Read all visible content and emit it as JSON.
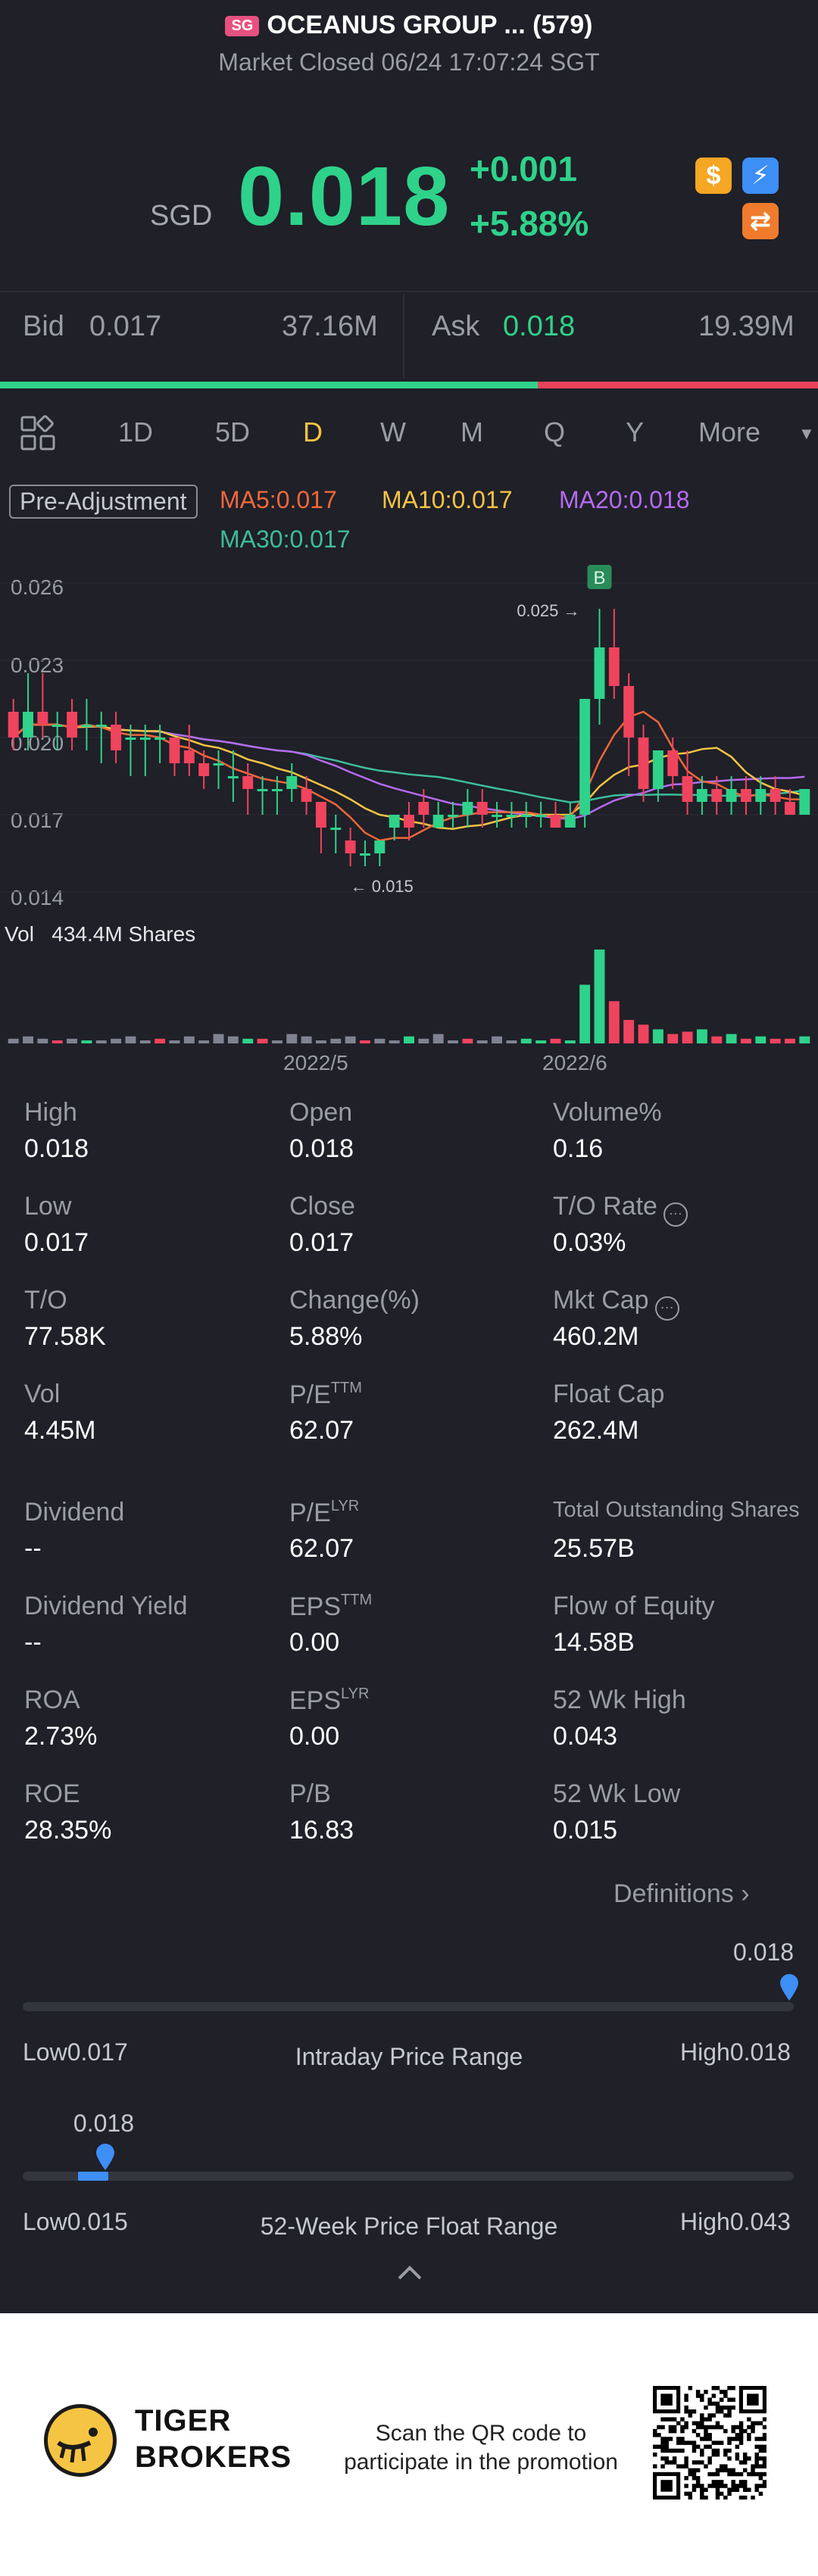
{
  "header": {
    "badge": "SG",
    "title": "OCEANUS GROUP ... (579)",
    "status": "Market Closed 06/24 17:07:24 SGT"
  },
  "quote": {
    "currency": "SGD",
    "price": "0.018",
    "change": "+0.001",
    "change_pct": "+5.88%"
  },
  "badges": [
    {
      "name": "dollar-badge-icon",
      "glyph": "$",
      "color": "#f5a623"
    },
    {
      "name": "lightning-badge-icon",
      "glyph": "⚡",
      "color": "#3d8ef5"
    },
    {
      "name": "exchange-badge-icon",
      "glyph": "⇄",
      "color": "#f07b2c"
    }
  ],
  "bidask": {
    "bid_label": "Bid",
    "bid_price": "0.017",
    "bid_vol": "37.16M",
    "ask_label": "Ask",
    "ask_price": "0.018",
    "ask_vol": "19.39M"
  },
  "tabs": [
    "1D",
    "5D",
    "D",
    "W",
    "M",
    "Q",
    "Y",
    "More"
  ],
  "active_tab": "D",
  "indicators": {
    "pre_adjustment": "Pre-Adjustment",
    "ma5": "MA5:0.017",
    "ma10": "MA10:0.017",
    "ma20": "MA20:0.018",
    "ma30": "MA30:0.017",
    "colors": {
      "ma5": "#f0673a",
      "ma10": "#f6c443",
      "ma20": "#b66af0",
      "ma30": "#3dbd9c",
      "up": "#2fd28a",
      "down": "#f0435e"
    }
  },
  "chart_data": {
    "type": "candlestick",
    "y_ticks": [
      "0.026",
      "0.023",
      "0.020",
      "0.017",
      "0.014"
    ],
    "ylim": [
      0.014,
      0.026
    ],
    "x_ticks": [
      "2022/5",
      "2022/6"
    ],
    "annotations": {
      "high_marker": "0.025",
      "low_marker": "0.015",
      "signal": "B"
    },
    "volume_label": "Vol",
    "volume_value": "434.4M Shares",
    "candles": [
      {
        "o": 0.021,
        "h": 0.0215,
        "l": 0.0195,
        "c": 0.02
      },
      {
        "o": 0.02,
        "h": 0.0225,
        "l": 0.0195,
        "c": 0.021
      },
      {
        "o": 0.021,
        "h": 0.0225,
        "l": 0.02,
        "c": 0.0205
      },
      {
        "o": 0.0205,
        "h": 0.021,
        "l": 0.0195,
        "c": 0.0205
      },
      {
        "o": 0.021,
        "h": 0.0215,
        "l": 0.0195,
        "c": 0.02
      },
      {
        "o": 0.0205,
        "h": 0.0215,
        "l": 0.0195,
        "c": 0.0205
      },
      {
        "o": 0.0205,
        "h": 0.021,
        "l": 0.019,
        "c": 0.0205
      },
      {
        "o": 0.0205,
        "h": 0.021,
        "l": 0.019,
        "c": 0.0195
      },
      {
        "o": 0.02,
        "h": 0.0205,
        "l": 0.0185,
        "c": 0.02
      },
      {
        "o": 0.02,
        "h": 0.0205,
        "l": 0.0185,
        "c": 0.02
      },
      {
        "o": 0.02,
        "h": 0.0205,
        "l": 0.019,
        "c": 0.02
      },
      {
        "o": 0.02,
        "h": 0.02,
        "l": 0.0185,
        "c": 0.019
      },
      {
        "o": 0.0195,
        "h": 0.0205,
        "l": 0.0185,
        "c": 0.019
      },
      {
        "o": 0.019,
        "h": 0.0195,
        "l": 0.018,
        "c": 0.0185
      },
      {
        "o": 0.019,
        "h": 0.0195,
        "l": 0.018,
        "c": 0.019
      },
      {
        "o": 0.0185,
        "h": 0.0195,
        "l": 0.0175,
        "c": 0.0185
      },
      {
        "o": 0.0185,
        "h": 0.019,
        "l": 0.017,
        "c": 0.018
      },
      {
        "o": 0.018,
        "h": 0.0185,
        "l": 0.017,
        "c": 0.018
      },
      {
        "o": 0.018,
        "h": 0.0185,
        "l": 0.017,
        "c": 0.018
      },
      {
        "o": 0.018,
        "h": 0.019,
        "l": 0.0175,
        "c": 0.0185
      },
      {
        "o": 0.018,
        "h": 0.0185,
        "l": 0.017,
        "c": 0.0175
      },
      {
        "o": 0.0175,
        "h": 0.0175,
        "l": 0.0155,
        "c": 0.0165
      },
      {
        "o": 0.0165,
        "h": 0.017,
        "l": 0.0155,
        "c": 0.0165
      },
      {
        "o": 0.016,
        "h": 0.0165,
        "l": 0.015,
        "c": 0.0155
      },
      {
        "o": 0.0155,
        "h": 0.016,
        "l": 0.015,
        "c": 0.0155
      },
      {
        "o": 0.0155,
        "h": 0.016,
        "l": 0.015,
        "c": 0.016
      },
      {
        "o": 0.0165,
        "h": 0.017,
        "l": 0.016,
        "c": 0.017
      },
      {
        "o": 0.017,
        "h": 0.0175,
        "l": 0.016,
        "c": 0.0165
      },
      {
        "o": 0.0175,
        "h": 0.018,
        "l": 0.0165,
        "c": 0.017
      },
      {
        "o": 0.0165,
        "h": 0.0175,
        "l": 0.0165,
        "c": 0.017
      },
      {
        "o": 0.017,
        "h": 0.0175,
        "l": 0.0165,
        "c": 0.017
      },
      {
        "o": 0.017,
        "h": 0.018,
        "l": 0.0165,
        "c": 0.0175
      },
      {
        "o": 0.0175,
        "h": 0.018,
        "l": 0.0165,
        "c": 0.017
      },
      {
        "o": 0.017,
        "h": 0.0175,
        "l": 0.0165,
        "c": 0.017
      },
      {
        "o": 0.017,
        "h": 0.0175,
        "l": 0.0165,
        "c": 0.017
      },
      {
        "o": 0.017,
        "h": 0.0175,
        "l": 0.0165,
        "c": 0.017
      },
      {
        "o": 0.017,
        "h": 0.0175,
        "l": 0.0165,
        "c": 0.017
      },
      {
        "o": 0.017,
        "h": 0.0175,
        "l": 0.0165,
        "c": 0.0165
      },
      {
        "o": 0.0165,
        "h": 0.0175,
        "l": 0.0165,
        "c": 0.017
      },
      {
        "o": 0.017,
        "h": 0.0215,
        "l": 0.0165,
        "c": 0.0215
      },
      {
        "o": 0.0215,
        "h": 0.025,
        "l": 0.0205,
        "c": 0.0235
      },
      {
        "o": 0.0235,
        "h": 0.025,
        "l": 0.0215,
        "c": 0.022
      },
      {
        "o": 0.022,
        "h": 0.0225,
        "l": 0.0185,
        "c": 0.02
      },
      {
        "o": 0.02,
        "h": 0.0205,
        "l": 0.0175,
        "c": 0.018
      },
      {
        "o": 0.018,
        "h": 0.0195,
        "l": 0.0175,
        "c": 0.0195
      },
      {
        "o": 0.0195,
        "h": 0.02,
        "l": 0.018,
        "c": 0.0185
      },
      {
        "o": 0.0185,
        "h": 0.0195,
        "l": 0.017,
        "c": 0.0175
      },
      {
        "o": 0.0175,
        "h": 0.0185,
        "l": 0.017,
        "c": 0.018
      },
      {
        "o": 0.018,
        "h": 0.0185,
        "l": 0.017,
        "c": 0.0175
      },
      {
        "o": 0.0175,
        "h": 0.0185,
        "l": 0.017,
        "c": 0.018
      },
      {
        "o": 0.018,
        "h": 0.0185,
        "l": 0.017,
        "c": 0.0175
      },
      {
        "o": 0.0175,
        "h": 0.0185,
        "l": 0.017,
        "c": 0.018
      },
      {
        "o": 0.018,
        "h": 0.0185,
        "l": 0.017,
        "c": 0.0175
      },
      {
        "o": 0.0175,
        "h": 0.018,
        "l": 0.017,
        "c": 0.017
      },
      {
        "o": 0.017,
        "h": 0.018,
        "l": 0.017,
        "c": 0.018
      }
    ],
    "volumes": [
      2,
      3,
      2,
      1,
      2,
      1,
      1,
      2,
      3,
      1,
      2,
      1,
      3,
      1,
      4,
      3,
      2,
      2,
      1,
      4,
      3,
      1,
      2,
      3,
      1,
      2,
      1,
      3,
      2,
      4,
      1,
      2,
      1,
      3,
      1,
      2,
      1,
      2,
      1,
      25,
      40,
      18,
      10,
      8,
      6,
      4,
      5,
      6,
      3,
      4,
      2,
      3,
      2,
      2,
      3
    ]
  },
  "stats": [
    {
      "label": "High",
      "value": "0.018"
    },
    {
      "label": "Open",
      "value": "0.018"
    },
    {
      "label": "Volume%",
      "value": "0.16"
    },
    {
      "label": "Low",
      "value": "0.017"
    },
    {
      "label": "Close",
      "value": "0.017"
    },
    {
      "label": "T/O Rate",
      "value": "0.03%"
    },
    {
      "label": "T/O",
      "value": "77.58K"
    },
    {
      "label": "Change(%)",
      "value": "5.88%"
    },
    {
      "label": "Mkt Cap",
      "value": "460.2M"
    },
    {
      "label": "Vol",
      "value": "4.45M"
    },
    {
      "label": "P/E",
      "sup": "TTM",
      "value": "62.07"
    },
    {
      "label": "Float Cap",
      "value": "262.4M"
    },
    {
      "label": "Dividend",
      "value": "--"
    },
    {
      "label": "P/E",
      "sup": "LYR",
      "value": "62.07"
    },
    {
      "label": "Total Outstanding Shares",
      "value": "25.57B"
    },
    {
      "label": "Dividend Yield",
      "value": "--"
    },
    {
      "label": "EPS",
      "sup": "TTM",
      "value": "0.00"
    },
    {
      "label": "Flow of Equity",
      "value": "14.58B"
    },
    {
      "label": "ROA",
      "value": "2.73%"
    },
    {
      "label": "EPS",
      "sup": "LYR",
      "value": "0.00"
    },
    {
      "label": "52 Wk High",
      "value": "0.043"
    },
    {
      "label": "ROE",
      "value": "28.35%"
    },
    {
      "label": "P/B",
      "value": "16.83"
    },
    {
      "label": "52 Wk Low",
      "value": "0.015"
    }
  ],
  "definitions_label": "Definitions",
  "intraday": {
    "marker_value": "0.018",
    "low_label": "Low0.017",
    "high_label": "High0.018",
    "title": "Intraday Price Range",
    "position": 1.0
  },
  "week52": {
    "marker_value": "0.018",
    "low_label": "Low0.015",
    "high_label": "High0.043",
    "title": "52-Week Price Float Range",
    "position": 0.107
  },
  "footer": {
    "brand_line1": "TIGER",
    "brand_line2": "BROKERS",
    "promo_line1": "Scan the QR code to",
    "promo_line2": "participate in the promotion"
  }
}
